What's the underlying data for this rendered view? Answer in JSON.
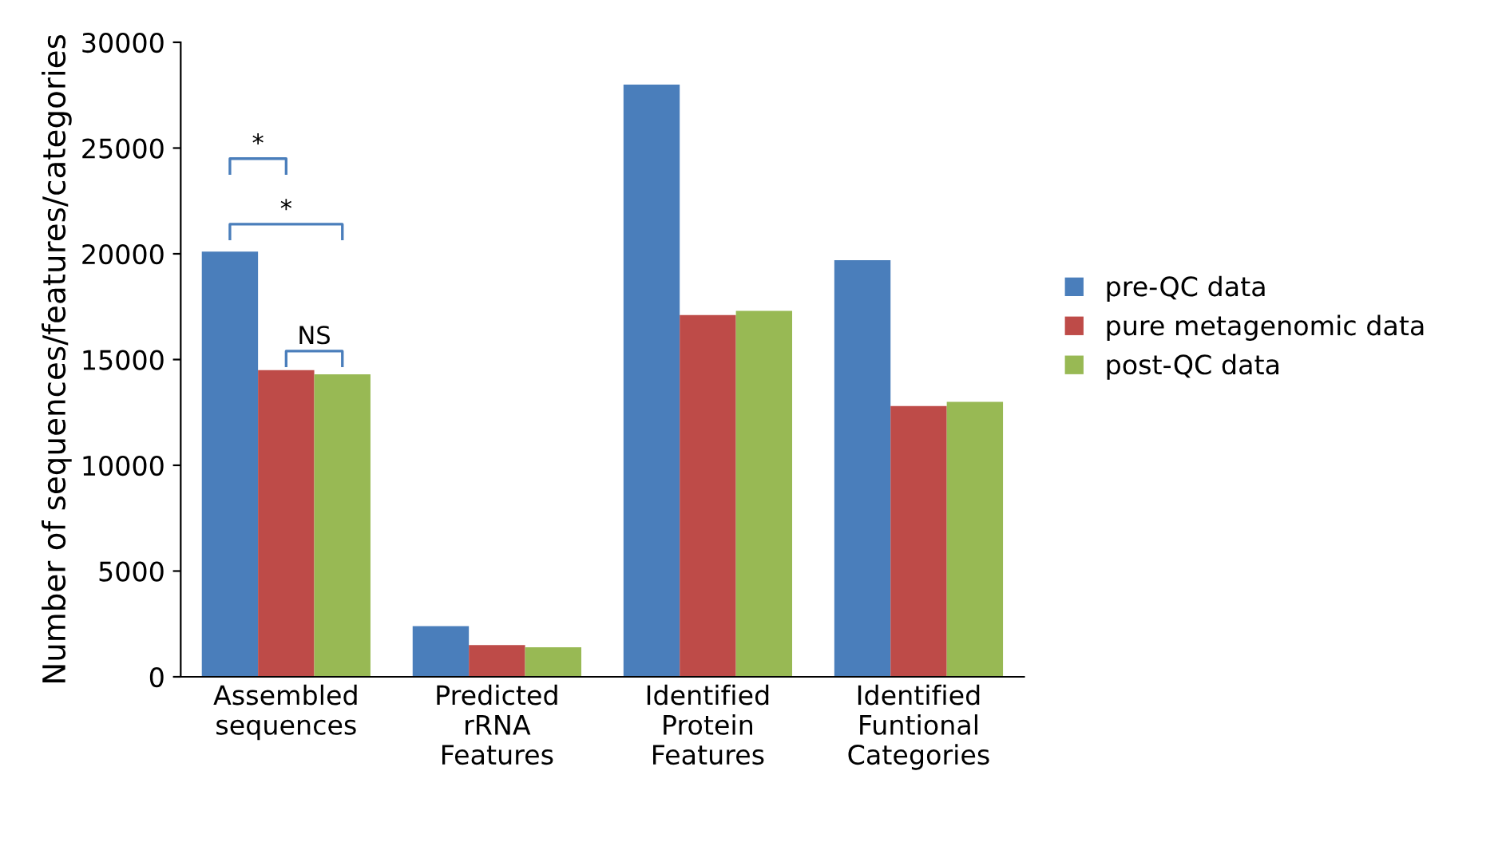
{
  "chart_data": {
    "type": "bar",
    "ylabel": "Number of sequences/features/categories",
    "categories": [
      "Assembled\nsequences",
      "Predicted\nrRNA\nFeatures",
      "Identified\nProtein\nFeatures",
      "Identified\nFuntional\nCategories"
    ],
    "series": [
      {
        "name": "pre-QC data",
        "color": "#4a7ebb",
        "values": [
          20100,
          2400,
          28000,
          19700
        ]
      },
      {
        "name": "pure metagenomic data",
        "color": "#be4b48",
        "values": [
          14500,
          1500,
          17100,
          12800
        ]
      },
      {
        "name": "post-QC data",
        "color": "#98b954",
        "values": [
          14300,
          1400,
          17300,
          13000
        ]
      }
    ],
    "ylim": [
      0,
      30000
    ],
    "yticks": [
      0,
      5000,
      10000,
      15000,
      20000,
      25000,
      30000
    ],
    "annotations": [
      "*",
      "*",
      "NS"
    ],
    "grid": false,
    "legend": "right"
  }
}
